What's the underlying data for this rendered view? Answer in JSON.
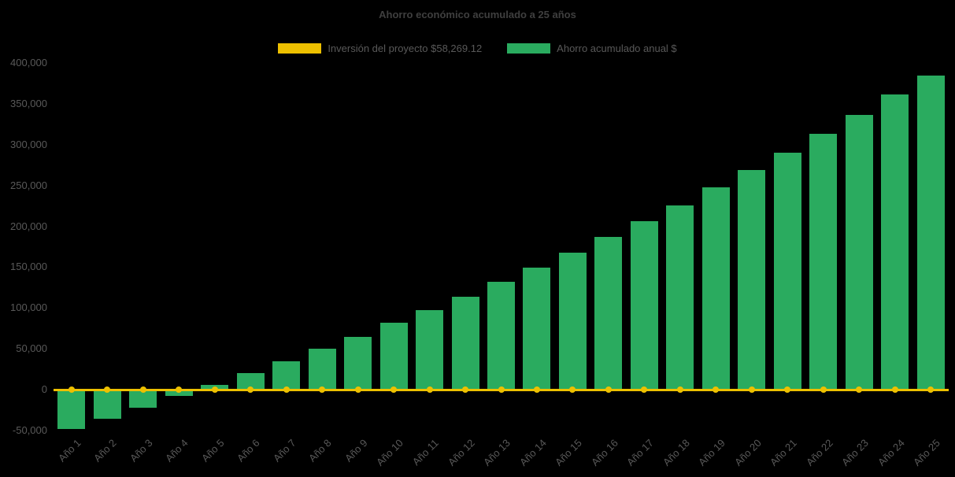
{
  "page": {
    "background": "#000000"
  },
  "chart_data": {
    "type": "bar",
    "title": "Ahorro económico acumulado a 25 años",
    "title_color": "#3f3f3f",
    "axis_text_color": "#595959",
    "background": "#000000",
    "grid": false,
    "legend_position": "top-center",
    "legend": [
      {
        "label": "Inversión del proyecto $58,269.12",
        "color": "#edc000",
        "series_type": "line"
      },
      {
        "label": "Ahorro acumulado anual $",
        "color": "#2aab5f",
        "series_type": "bar"
      }
    ],
    "categories": [
      "Año 1",
      "Año 2",
      "Año 3",
      "Año 4",
      "Año 5",
      "Año 6",
      "Año 7",
      "Año 8",
      "Año 9",
      "Año 10",
      "Año 11",
      "Año 12",
      "Año 13",
      "Año 14",
      "Año 15",
      "Año 16",
      "Año 17",
      "Año 18",
      "Año 19",
      "Año 20",
      "Año 21",
      "Año 22",
      "Año 23",
      "Año 24",
      "Año 25"
    ],
    "bar_series": {
      "name": "Ahorro acumulado anual $",
      "color": "#2aab5f",
      "values": [
        -48000,
        -36000,
        -22000,
        -8000,
        6000,
        20000,
        35000,
        50000,
        65000,
        82000,
        97000,
        114000,
        132000,
        149000,
        168000,
        187000,
        206000,
        226000,
        248000,
        269000,
        290000,
        313000,
        336000,
        361000,
        385000
      ]
    },
    "line_series": {
      "name": "Inversión del proyecto $58,269.12",
      "color": "#edc000",
      "constant_value": 0,
      "markers": true
    },
    "ylim": [
      -50000,
      400000
    ],
    "ytick_step": 50000,
    "yticks": [
      {
        "value": 400000,
        "label": "400,000"
      },
      {
        "value": 350000,
        "label": "350,000"
      },
      {
        "value": 300000,
        "label": "300,000"
      },
      {
        "value": 250000,
        "label": "250,000"
      },
      {
        "value": 200000,
        "label": "200,000"
      },
      {
        "value": 150000,
        "label": "150,000"
      },
      {
        "value": 100000,
        "label": "100,000"
      },
      {
        "value": 50000,
        "label": "50,000"
      },
      {
        "value": 0,
        "label": "0"
      },
      {
        "value": -50000,
        "label": "-50,000"
      }
    ]
  }
}
